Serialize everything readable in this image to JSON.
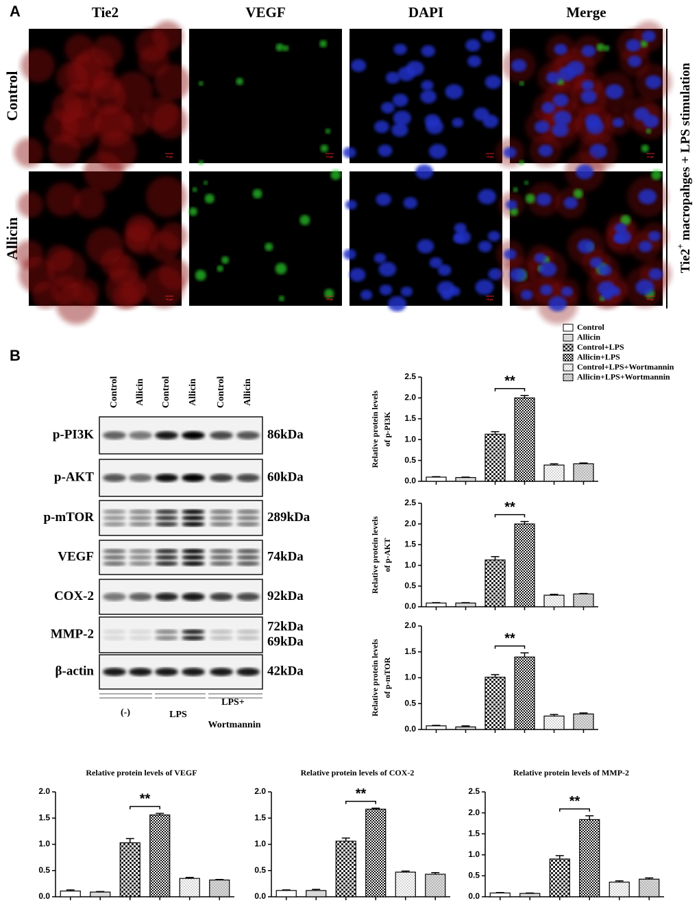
{
  "panel_a": {
    "label": "A",
    "columns": [
      "Tie2",
      "VEGF",
      "DAPI",
      "Merge"
    ],
    "rows": [
      "Control",
      "Allicin"
    ],
    "scale_bar": "10 μm",
    "side_label": [
      "Tie2",
      "+",
      " macropahges + LPS stimulation"
    ]
  },
  "panel_b": {
    "label": "B",
    "lanes": [
      "Control",
      "Allicin",
      "Control",
      "Allicin",
      "Control",
      "Allicin"
    ],
    "proteins": [
      {
        "name": "p-PI3K",
        "sizes": [
          "86kDa"
        ]
      },
      {
        "name": "p-AKT",
        "sizes": [
          "60kDa"
        ]
      },
      {
        "name": "p-mTOR",
        "sizes": [
          "289kDa"
        ]
      },
      {
        "name": "VEGF",
        "sizes": [
          "74kDa"
        ]
      },
      {
        "name": "COX-2",
        "sizes": [
          "92kDa"
        ]
      },
      {
        "name": "MMP-2",
        "sizes": [
          "72kDa",
          "69kDa"
        ]
      },
      {
        "name": "β-actin",
        "sizes": [
          "42kDa"
        ]
      }
    ],
    "groups": [
      [
        "(-)"
      ],
      [
        "LPS"
      ],
      [
        "LPS+",
        "Wortmannin"
      ]
    ]
  },
  "legend": {
    "entries": [
      "Control",
      "Allicin",
      "Control+LPS",
      "Allicin+LPS",
      "Control+LPS+Wortmannin",
      "Allicin+LPS+Wortmannin"
    ],
    "fills": [
      "white",
      "lightgray",
      "checker",
      "checker-fine",
      "dots",
      "dots-gray"
    ]
  },
  "chart_data": [
    {
      "type": "bar",
      "ylabel": [
        "Relative protein levels",
        "of p-PI3K"
      ],
      "values": [
        0.1,
        0.09,
        1.13,
        2.0,
        0.39,
        0.42
      ],
      "errors": [
        0.01,
        0.01,
        0.06,
        0.06,
        0.03,
        0.02
      ],
      "annotation": "**",
      "ylim": [
        0,
        2.5
      ],
      "yticks": [
        {
          "value": 0,
          "label": "0.0"
        },
        0.5,
        {
          "value": 1,
          "label": "1.0"
        },
        1.5,
        {
          "value": 2,
          "label": "2.0"
        },
        2.5
      ]
    },
    {
      "type": "bar",
      "ylabel": [
        "Relative protein levels",
        "of p-AKT"
      ],
      "values": [
        0.09,
        0.09,
        1.13,
        2.0,
        0.28,
        0.31
      ],
      "errors": [
        0.01,
        0.01,
        0.08,
        0.06,
        0.02,
        0.01
      ],
      "annotation": "**",
      "ylim": [
        0,
        2.5
      ],
      "yticks": [
        {
          "value": 0,
          "label": "0.0"
        },
        0.5,
        {
          "value": 1,
          "label": "1.0"
        },
        1.5,
        {
          "value": 2,
          "label": "2.0"
        },
        2.5
      ]
    },
    {
      "type": "bar",
      "ylabel": [
        "Relative protein levels",
        "of p-mTOR"
      ],
      "values": [
        0.07,
        0.05,
        1.01,
        1.4,
        0.26,
        0.3
      ],
      "errors": [
        0.01,
        0.02,
        0.05,
        0.08,
        0.03,
        0.02
      ],
      "annotation": "**",
      "ylim": [
        0,
        2.0
      ],
      "yticks": [
        {
          "value": 0,
          "label": "0.0"
        },
        0.5,
        {
          "value": 1,
          "label": "1.0"
        },
        1.5,
        {
          "value": 2,
          "label": "2.0"
        }
      ]
    },
    {
      "type": "bar",
      "title": "Relative protein levels of VEGF",
      "values": [
        0.11,
        0.09,
        1.03,
        1.56,
        0.35,
        0.32
      ],
      "errors": [
        0.02,
        0.01,
        0.08,
        0.03,
        0.02,
        0.01
      ],
      "annotation": "**",
      "ylim": [
        0,
        2.0
      ],
      "yticks": [
        {
          "value": 0,
          "label": "0.0"
        },
        0.5,
        {
          "value": 1,
          "label": "1.0"
        },
        1.5,
        {
          "value": 2,
          "label": "2.0"
        }
      ]
    },
    {
      "type": "bar",
      "title": "Relative protein levels of COX-2",
      "values": [
        0.12,
        0.12,
        1.06,
        1.67,
        0.47,
        0.43
      ],
      "errors": [
        0.01,
        0.02,
        0.06,
        0.02,
        0.02,
        0.03
      ],
      "annotation": "**",
      "ylim": [
        0,
        2.0
      ],
      "yticks": [
        {
          "value": 0,
          "label": "0.0"
        },
        0.5,
        {
          "value": 1,
          "label": "1.0"
        },
        1.5,
        {
          "value": 2,
          "label": "2.0"
        }
      ]
    },
    {
      "type": "bar",
      "title": "Relative protein levels of MMP-2",
      "values": [
        0.09,
        0.08,
        0.9,
        1.84,
        0.35,
        0.42
      ],
      "errors": [
        0.01,
        0.01,
        0.08,
        0.09,
        0.03,
        0.03
      ],
      "annotation": "**",
      "ylim": [
        0,
        2.5
      ],
      "yticks": [
        {
          "value": 0,
          "label": "0.0"
        },
        0.5,
        {
          "value": 1,
          "label": "1.0"
        },
        1.5,
        {
          "value": 2,
          "label": "2.0"
        },
        2.5
      ]
    }
  ]
}
